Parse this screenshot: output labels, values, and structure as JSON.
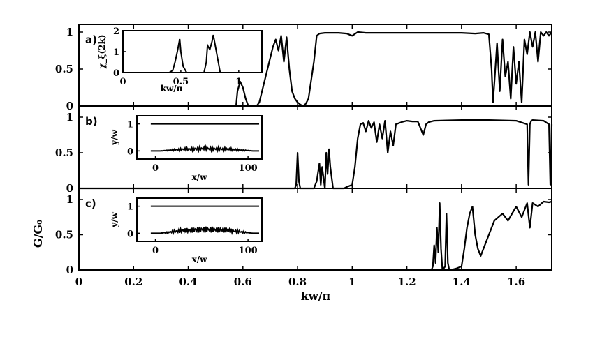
{
  "chart_data": {
    "type": "line",
    "shared_xlabel": "kw/π",
    "shared_ylabel": "G/G₀",
    "x_ticks": [
      "0",
      "0.2",
      "0.4",
      "0.6",
      "0.8",
      "1",
      "1.2",
      "1.4",
      "1.6"
    ],
    "xlim": [
      0,
      1.73
    ],
    "panels": [
      {
        "label": "a)",
        "ylim": [
          0,
          1.05
        ],
        "y_ticks": [
          "0",
          "0.5",
          "1"
        ],
        "series": {
          "x": [
            0.575,
            0.58,
            0.59,
            0.6,
            0.61,
            0.62,
            0.63,
            0.64,
            0.65,
            0.66,
            0.67,
            0.68,
            0.69,
            0.7,
            0.71,
            0.72,
            0.73,
            0.74,
            0.75,
            0.76,
            0.77,
            0.78,
            0.79,
            0.8,
            0.81,
            0.82,
            0.83,
            0.84,
            0.85,
            0.86,
            0.87,
            0.88,
            0.9,
            0.95,
            0.98,
            1.0,
            1.02,
            1.05,
            1.1,
            1.2,
            1.3,
            1.4,
            1.45,
            1.48,
            1.5,
            1.51,
            1.515,
            1.52,
            1.53,
            1.54,
            1.55,
            1.56,
            1.57,
            1.58,
            1.59,
            1.6,
            1.61,
            1.62,
            1.63,
            1.64,
            1.65,
            1.66,
            1.67,
            1.68,
            1.69,
            1.7,
            1.71,
            1.72,
            1.73
          ],
          "y": [
            0,
            0.2,
            0.33,
            0.25,
            0.1,
            0,
            0,
            0,
            0,
            0.05,
            0.2,
            0.35,
            0.5,
            0.65,
            0.8,
            0.9,
            0.75,
            0.95,
            0.6,
            0.93,
            0.5,
            0.2,
            0.1,
            0.05,
            0.02,
            0,
            0.03,
            0.1,
            0.35,
            0.6,
            0.95,
            0.98,
            0.99,
            0.99,
            0.98,
            0.95,
            1.0,
            0.99,
            0.99,
            0.99,
            0.99,
            0.99,
            0.98,
            0.99,
            0.97,
            0.5,
            0.05,
            0.3,
            0.85,
            0.2,
            0.9,
            0.4,
            0.6,
            0.1,
            0.8,
            0.3,
            0.6,
            0.05,
            0.9,
            0.7,
            1.0,
            0.8,
            1.0,
            0.6,
            1.0,
            0.95,
            1.0,
            0.95,
            1.0
          ]
        },
        "inset": {
          "xlabel": "kw/π",
          "ylabel": "χ_ξ̃(2k)",
          "xlim": [
            0,
            1.2
          ],
          "ylim": [
            0,
            2
          ],
          "x_ticks": [
            "0",
            "0.5",
            "1"
          ],
          "y_ticks": [
            "0",
            "1",
            "2"
          ],
          "series": {
            "x": [
              0,
              0.4,
              0.43,
              0.45,
              0.47,
              0.48,
              0.49,
              0.5,
              0.52,
              0.55,
              0.7,
              0.72,
              0.73,
              0.75,
              0.77,
              0.78,
              0.8,
              0.82,
              0.84,
              1.2
            ],
            "y": [
              0,
              0,
              0.1,
              0.5,
              1.0,
              1.3,
              1.6,
              1.0,
              0.3,
              0,
              0,
              0.5,
              1.3,
              1.1,
              1.5,
              1.8,
              1.2,
              0.6,
              0,
              0
            ]
          }
        }
      },
      {
        "label": "b)",
        "ylim": [
          0,
          1.05
        ],
        "y_ticks": [
          "0",
          "0.5",
          "1"
        ],
        "series": {
          "x": [
            0.79,
            0.795,
            0.8,
            0.805,
            0.81,
            0.86,
            0.87,
            0.88,
            0.885,
            0.89,
            0.9,
            0.905,
            0.91,
            0.915,
            0.92,
            0.93,
            0.94,
            0.95,
            0.96,
            0.97,
            0.98,
            1.0,
            1.01,
            1.02,
            1.03,
            1.04,
            1.05,
            1.06,
            1.07,
            1.08,
            1.09,
            1.1,
            1.11,
            1.12,
            1.13,
            1.14,
            1.15,
            1.16,
            1.18,
            1.2,
            1.22,
            1.24,
            1.26,
            1.27,
            1.28,
            1.3,
            1.4,
            1.5,
            1.6,
            1.64,
            1.645,
            1.65,
            1.655,
            1.66,
            1.7,
            1.72,
            1.725,
            1.73
          ],
          "y": [
            0,
            0.05,
            0.5,
            0.1,
            0,
            0,
            0.1,
            0.35,
            0.05,
            0.3,
            0,
            0.5,
            0.2,
            0.55,
            0.3,
            0,
            0,
            0,
            0,
            0,
            0.02,
            0.05,
            0.3,
            0.7,
            0.9,
            0.92,
            0.8,
            0.95,
            0.85,
            0.93,
            0.65,
            0.9,
            0.7,
            0.95,
            0.5,
            0.8,
            0.6,
            0.9,
            0.93,
            0.95,
            0.94,
            0.94,
            0.75,
            0.9,
            0.93,
            0.95,
            0.96,
            0.96,
            0.95,
            0.9,
            0.05,
            0.9,
            0.95,
            0.96,
            0.95,
            0.9,
            0.05,
            0.9
          ]
        },
        "inset": {
          "xlabel": "x/w",
          "ylabel": "y/w",
          "xlim": [
            -20,
            115
          ],
          "ylim": [
            -0.3,
            1.3
          ],
          "x_ticks": [
            "0",
            "100"
          ],
          "y_ticks": [
            "0",
            "1"
          ],
          "top_edge_y": 1,
          "bottom_edge_y": 0,
          "bottom_amplitude": 0.15
        }
      },
      {
        "label": "c)",
        "ylim": [
          0,
          1.05
        ],
        "y_ticks": [
          "0",
          "0.5",
          "1"
        ],
        "series": {
          "x": [
            1.29,
            1.295,
            1.3,
            1.305,
            1.31,
            1.315,
            1.32,
            1.325,
            1.33,
            1.34,
            1.345,
            1.35,
            1.355,
            1.36,
            1.38,
            1.4,
            1.41,
            1.42,
            1.43,
            1.44,
            1.45,
            1.46,
            1.47,
            1.48,
            1.5,
            1.52,
            1.55,
            1.57,
            1.6,
            1.62,
            1.64,
            1.65,
            1.66,
            1.68,
            1.7,
            1.72,
            1.73
          ],
          "y": [
            0,
            0.05,
            0.35,
            0.1,
            0.6,
            0.25,
            0.95,
            0.3,
            0,
            0.05,
            0.8,
            0.1,
            0,
            0,
            0.02,
            0.05,
            0.3,
            0.6,
            0.8,
            0.9,
            0.5,
            0.3,
            0.2,
            0.3,
            0.5,
            0.7,
            0.8,
            0.7,
            0.9,
            0.75,
            0.95,
            0.6,
            0.95,
            0.9,
            0.97,
            0.96,
            0.97
          ]
        },
        "inset": {
          "xlabel": "x/w",
          "ylabel": "y/w",
          "xlim": [
            -20,
            115
          ],
          "ylim": [
            -0.3,
            1.3
          ],
          "x_ticks": [
            "0",
            "100"
          ],
          "y_ticks": [
            "0",
            "1"
          ],
          "top_edge_y": 1,
          "bottom_edge_y": 0,
          "bottom_amplitude": 0.25
        }
      }
    ]
  }
}
